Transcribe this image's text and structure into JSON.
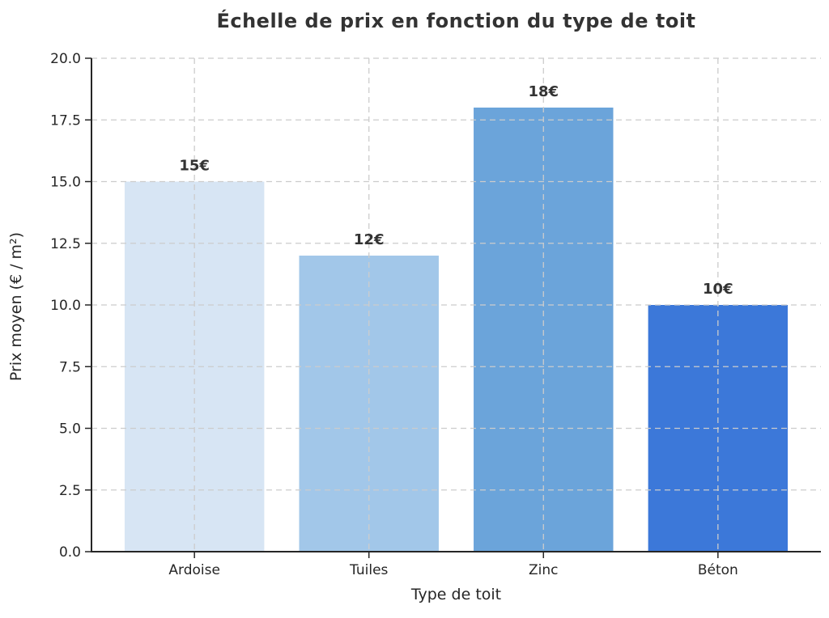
{
  "chart_data": {
    "type": "bar",
    "title": "Échelle de prix en fonction du type de toit",
    "xlabel": "Type de toit",
    "ylabel": "Prix moyen (€ / m²)",
    "categories": [
      "Ardoise",
      "Tuiles",
      "Zinc",
      "Béton"
    ],
    "values": [
      15,
      12,
      18,
      10
    ],
    "value_labels": [
      "15€",
      "12€",
      "18€",
      "10€"
    ],
    "ylim": [
      0,
      20
    ],
    "ytick_step": 2.5,
    "yticks": [
      "0.0",
      "2.5",
      "5.0",
      "7.5",
      "10.0",
      "12.5",
      "15.0",
      "17.5",
      "20.0"
    ],
    "bar_colors": [
      "#d7e5f4",
      "#a2c7e9",
      "#6ba4da",
      "#3c78d9"
    ],
    "grid": "dashed, horizontal and vertical, drawn above bars",
    "grid_color": "#cccccc",
    "spine_color": "#262626",
    "text_color": "#262626",
    "label_color": "#333333",
    "legend": "none"
  }
}
